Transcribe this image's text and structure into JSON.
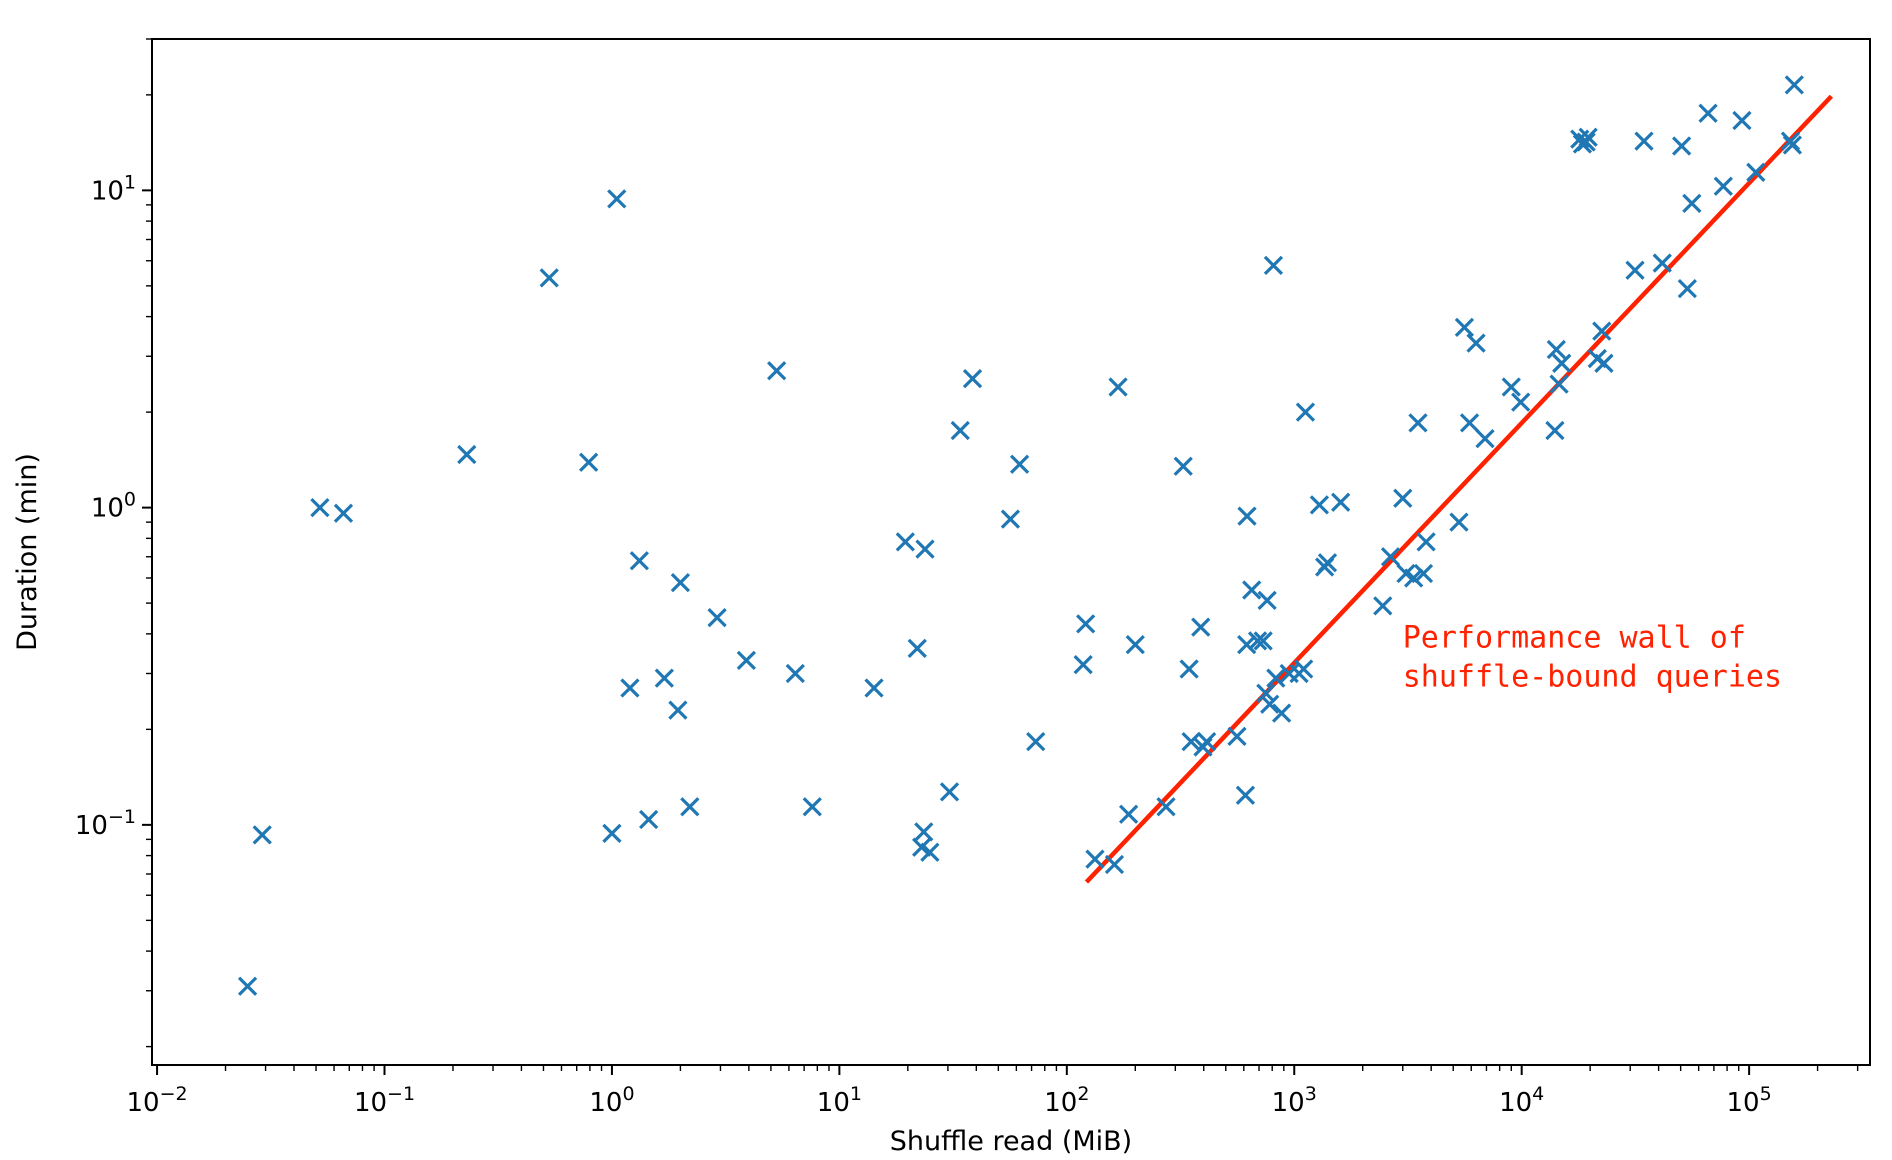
{
  "chart_data": {
    "type": "scatter",
    "title": "",
    "xlabel": "Shuffle read (MiB)",
    "ylabel": "Duration (min)",
    "xscale": "log",
    "yscale": "log",
    "xlim": [
      0.0095,
      340000
    ],
    "ylim": [
      0.0175,
      30
    ],
    "grid": false,
    "legend": "none",
    "x_ticks": [
      {
        "value": 0.01,
        "base": "10",
        "exp": "−2"
      },
      {
        "value": 0.1,
        "base": "10",
        "exp": "−1"
      },
      {
        "value": 1,
        "base": "10",
        "exp": "0"
      },
      {
        "value": 10,
        "base": "10",
        "exp": "1"
      },
      {
        "value": 100,
        "base": "10",
        "exp": "2"
      },
      {
        "value": 1000,
        "base": "10",
        "exp": "3"
      },
      {
        "value": 10000,
        "base": "10",
        "exp": "4"
      },
      {
        "value": 100000,
        "base": "10",
        "exp": "5"
      }
    ],
    "y_ticks": [
      {
        "value": 0.1,
        "base": "10",
        "exp": "−1"
      },
      {
        "value": 1,
        "base": "10",
        "exp": "0"
      },
      {
        "value": 10,
        "base": "10",
        "exp": "1"
      }
    ],
    "series": [
      {
        "marker": "x",
        "color": "#1f77b4",
        "points": [
          [
            0.025,
            0.031
          ],
          [
            0.029,
            0.093
          ],
          [
            0.052,
            1.0
          ],
          [
            0.066,
            0.96
          ],
          [
            0.23,
            1.47
          ],
          [
            0.53,
            5.3
          ],
          [
            0.79,
            1.39
          ],
          [
            1.0,
            0.094
          ],
          [
            1.05,
            9.4
          ],
          [
            1.2,
            0.27
          ],
          [
            1.32,
            0.68
          ],
          [
            1.45,
            0.104
          ],
          [
            1.7,
            0.29
          ],
          [
            1.95,
            0.23
          ],
          [
            2.0,
            0.58
          ],
          [
            2.2,
            0.114
          ],
          [
            2.9,
            0.45
          ],
          [
            3.9,
            0.33
          ],
          [
            5.3,
            2.7
          ],
          [
            6.4,
            0.3
          ],
          [
            7.6,
            0.114
          ],
          [
            14.2,
            0.27
          ],
          [
            19.5,
            0.78
          ],
          [
            22.0,
            0.36
          ],
          [
            23.0,
            0.085
          ],
          [
            23.5,
            0.095
          ],
          [
            23.8,
            0.74
          ],
          [
            25.0,
            0.082
          ],
          [
            30.5,
            0.127
          ],
          [
            34.0,
            1.75
          ],
          [
            38.5,
            2.55
          ],
          [
            56.5,
            0.92
          ],
          [
            62.0,
            1.37
          ],
          [
            73.0,
            0.183
          ],
          [
            118.0,
            0.32
          ],
          [
            121.0,
            0.43
          ],
          [
            133.0,
            0.078
          ],
          [
            162.0,
            0.075
          ],
          [
            168.0,
            2.4
          ],
          [
            187.0,
            0.108
          ],
          [
            200.0,
            0.37
          ],
          [
            273.0,
            0.114
          ],
          [
            325.0,
            1.35
          ],
          [
            345.0,
            0.31
          ],
          [
            352.0,
            0.183
          ],
          [
            388.0,
            0.42
          ],
          [
            397.0,
            0.176
          ],
          [
            412.0,
            0.183
          ],
          [
            560.0,
            0.19
          ],
          [
            610.0,
            0.124
          ],
          [
            618.0,
            0.37
          ],
          [
            620.0,
            0.94
          ],
          [
            650.0,
            0.55
          ],
          [
            690.0,
            0.38
          ],
          [
            730.0,
            0.38
          ],
          [
            750.0,
            0.26
          ],
          [
            760.0,
            0.51
          ],
          [
            780.0,
            0.24
          ],
          [
            810.0,
            5.8
          ],
          [
            830.0,
            0.29
          ],
          [
            880.0,
            0.225
          ],
          [
            950.0,
            0.3
          ],
          [
            1050.0,
            0.3
          ],
          [
            1100.0,
            0.31
          ],
          [
            1120.0,
            2.0
          ],
          [
            1290.0,
            1.02
          ],
          [
            1360.0,
            0.65
          ],
          [
            1400.0,
            0.67
          ],
          [
            1600.0,
            1.04
          ],
          [
            2450.0,
            0.49
          ],
          [
            2650.0,
            0.7
          ],
          [
            3000.0,
            1.07
          ],
          [
            3100.0,
            0.62
          ],
          [
            3350.0,
            0.6
          ],
          [
            3500.0,
            1.85
          ],
          [
            3700.0,
            0.62
          ],
          [
            3800.0,
            0.78
          ],
          [
            5300.0,
            0.9
          ],
          [
            5600.0,
            3.7
          ],
          [
            5900.0,
            1.85
          ],
          [
            6300.0,
            3.3
          ],
          [
            6900.0,
            1.65
          ],
          [
            9000.0,
            2.4
          ],
          [
            9900.0,
            2.15
          ],
          [
            14000.0,
            1.75
          ],
          [
            14200.0,
            3.15
          ],
          [
            14600.0,
            2.45
          ],
          [
            15000.0,
            2.85
          ],
          [
            18000.0,
            14.5
          ],
          [
            18500.0,
            14.0
          ],
          [
            19200.0,
            14.2
          ],
          [
            19600.0,
            14.7
          ],
          [
            21500.0,
            2.95
          ],
          [
            22500.0,
            3.6
          ],
          [
            23000.0,
            2.85
          ],
          [
            31500.0,
            5.6
          ],
          [
            34500.0,
            14.3
          ],
          [
            41500.0,
            5.9
          ],
          [
            50500.0,
            13.8
          ],
          [
            53500.0,
            4.9
          ],
          [
            56000.0,
            9.1
          ],
          [
            66000.0,
            17.5
          ],
          [
            77000.0,
            10.3
          ],
          [
            93000.0,
            16.6
          ],
          [
            107000.0,
            11.4
          ],
          [
            152000.0,
            14.3
          ],
          [
            155000.0,
            13.9
          ],
          [
            158000.0,
            21.5
          ]
        ]
      }
    ],
    "fit_line": {
      "color": "#ff2200",
      "points": [
        [
          122,
          0.066
        ],
        [
          230000,
          19.8
        ]
      ]
    },
    "annotation": {
      "lines": [
        "Performance wall of",
        "shuffle-bound queries"
      ],
      "color": "#ff2200",
      "x": 3000,
      "y": 0.3
    }
  }
}
